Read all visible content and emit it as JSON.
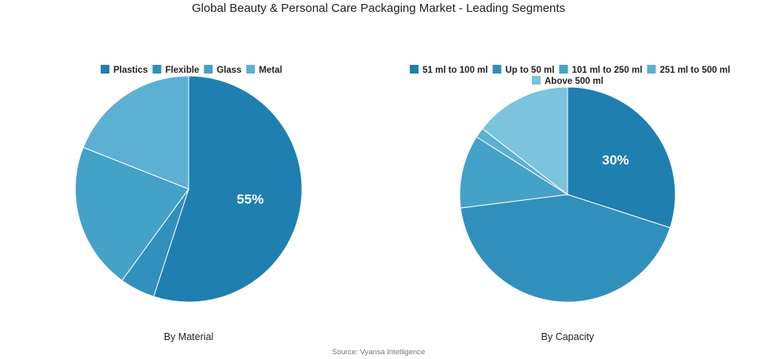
{
  "title": "Global Beauty & Personal Care Packaging Market - Leading Segments",
  "source": "Source: Vyansa Intelligence",
  "chart_data": [
    {
      "type": "pie",
      "subtitle": "By Material",
      "legend_position": "top",
      "categories": [
        "Plastics",
        "Flexible",
        "Glass",
        "Metal"
      ],
      "values": [
        55,
        5,
        21,
        19
      ],
      "colors": [
        "#1e7fb0",
        "#3190bb",
        "#44a1c8",
        "#5cb0d2"
      ],
      "data_labels": [
        "55%",
        "",
        "",
        ""
      ]
    },
    {
      "type": "pie",
      "subtitle": "By Capacity",
      "legend_position": "top",
      "categories": [
        "51 ml to 100 ml",
        "Up to 50 ml",
        "101 ml to 250 ml",
        "251 ml to 500 ml",
        "Above 500 ml"
      ],
      "values": [
        30,
        43,
        11,
        1.5,
        14.5
      ],
      "colors": [
        "#1e7fb0",
        "#3190bb",
        "#44a1c8",
        "#5cb0d2",
        "#7cc3dd"
      ],
      "data_labels": [
        "30%",
        "",
        "",
        "",
        ""
      ]
    }
  ]
}
